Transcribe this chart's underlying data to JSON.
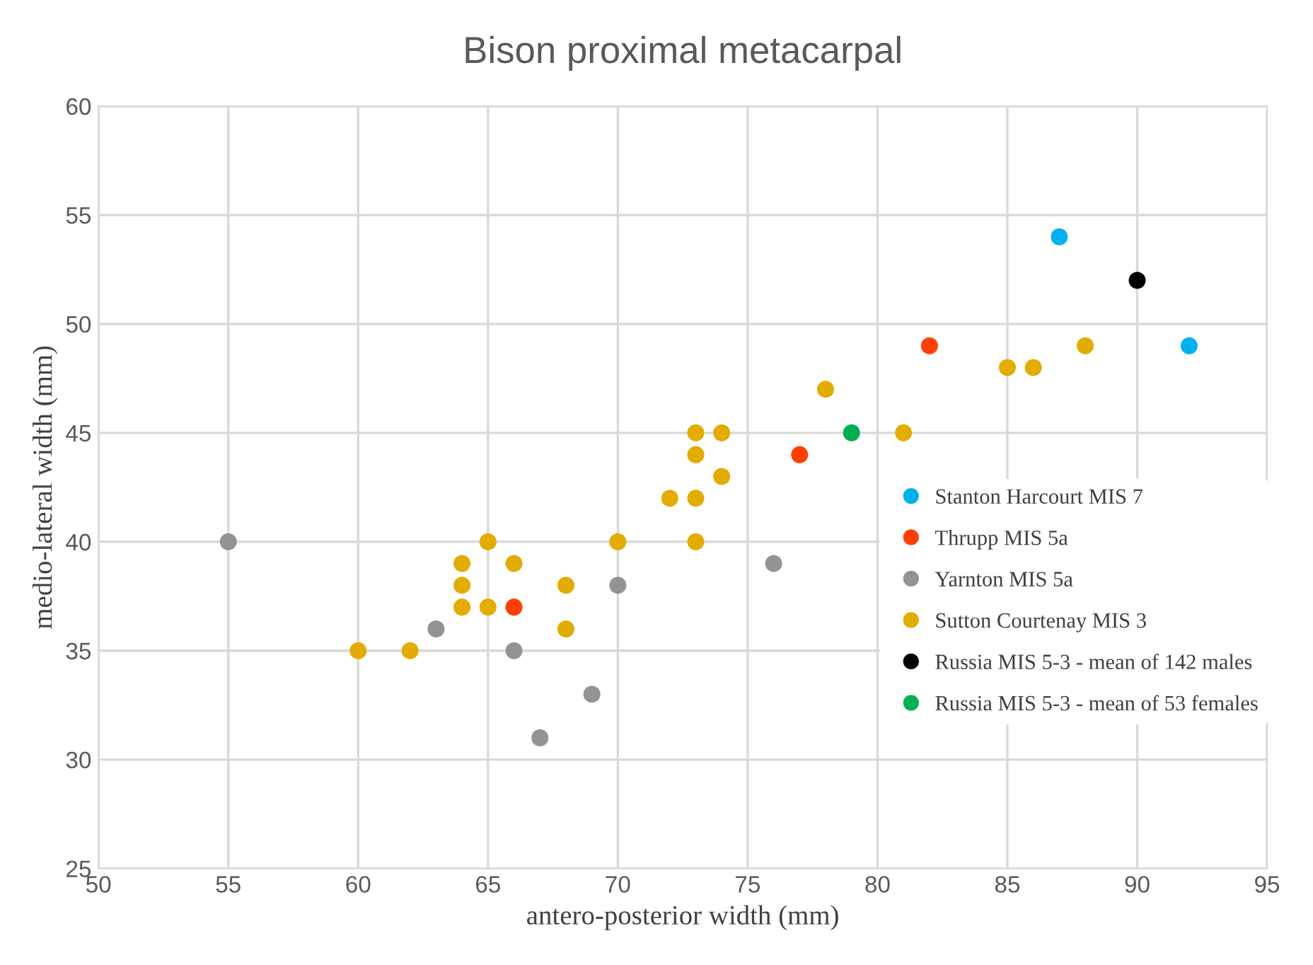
{
  "chart_data": {
    "type": "scatter",
    "title": "Bison proximal metacarpal",
    "xlabel": "antero-posterior width (mm)",
    "ylabel": "medio-lateral width (mm)",
    "xlim": [
      50,
      95
    ],
    "xticks": [
      50,
      55,
      60,
      65,
      70,
      75,
      80,
      85,
      90,
      95
    ],
    "ylim": [
      25,
      60
    ],
    "yticks": [
      25,
      30,
      35,
      40,
      45,
      50,
      55,
      60
    ],
    "grid": true,
    "legend": "right",
    "marker": "circle",
    "series": [
      {
        "name": "Stanton Harcourt MIS 7",
        "color": "#00b0f0",
        "x": [
          87,
          92
        ],
        "values": [
          54,
          49
        ]
      },
      {
        "name": "Thrupp MIS 5a",
        "color": "#ff4000",
        "x": [
          82,
          77,
          66
        ],
        "values": [
          49,
          44,
          37
        ]
      },
      {
        "name": "Yarnton MIS 5a",
        "color": "#939393",
        "x": [
          55,
          63,
          66,
          67,
          69,
          70,
          76
        ],
        "values": [
          40,
          36,
          35,
          31,
          33,
          38,
          39
        ]
      },
      {
        "name": "Sutton Courtenay MIS 3",
        "color": "#e3ac00",
        "x": [
          60,
          62,
          64,
          64,
          64,
          65,
          65,
          66,
          68,
          68,
          70,
          72,
          73,
          73,
          73,
          73,
          74,
          74,
          78,
          81,
          85,
          86,
          88
        ],
        "values": [
          35,
          35,
          39,
          38,
          37,
          40,
          37,
          39,
          38,
          36,
          40,
          42,
          45,
          44,
          42,
          40,
          45,
          43,
          47,
          45,
          48,
          48,
          49
        ]
      },
      {
        "name": "Russia MIS 5-3 - mean of 142 males",
        "color": "#000000",
        "x": [
          90
        ],
        "values": [
          52
        ]
      },
      {
        "name": "Russia MIS 5-3 - mean of 53 females",
        "color": "#00b050",
        "x": [
          79
        ],
        "values": [
          45
        ]
      }
    ]
  }
}
